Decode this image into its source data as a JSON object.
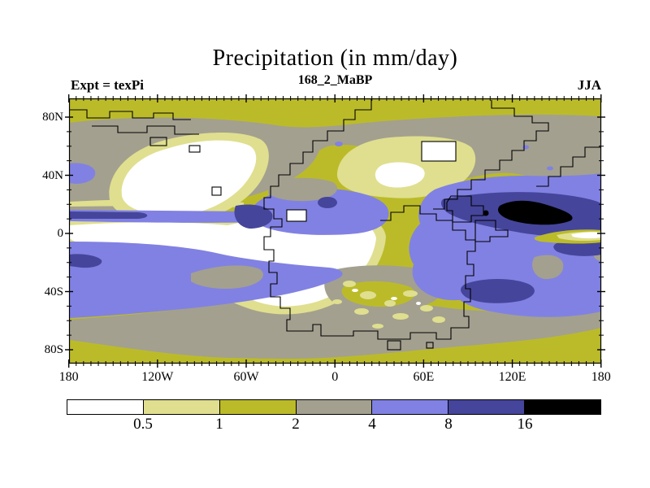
{
  "header": {
    "title": "Precipitation (in mm/day)",
    "subtitle": "168_2_MaBP",
    "experiment_label": "Expt = texPi",
    "season_label": "JJA"
  },
  "axes": {
    "lat_ticks": [
      {
        "label": "80N",
        "deg": 80
      },
      {
        "label": "40N",
        "deg": 40
      },
      {
        "label": "0",
        "deg": 0
      },
      {
        "label": "40S",
        "deg": -40
      },
      {
        "label": "80S",
        "deg": -80
      }
    ],
    "lat_minor_step_deg": 10,
    "lon_ticks": [
      {
        "label": "180",
        "deg": -180
      },
      {
        "label": "120W",
        "deg": -120
      },
      {
        "label": "60W",
        "deg": -60
      },
      {
        "label": "0",
        "deg": 0
      },
      {
        "label": "60E",
        "deg": 60
      },
      {
        "label": "120E",
        "deg": 120
      },
      {
        "label": "180",
        "deg": 180
      }
    ],
    "lon_minor_step_deg": 5
  },
  "colorbar": {
    "labels": [
      "0.5",
      "1",
      "2",
      "4",
      "8",
      "16"
    ],
    "colors": [
      "#FFFFFF",
      "#DFDF8F",
      "#BBBB2A",
      "#A3A08F",
      "#8181E3",
      "#45459B",
      "#000000"
    ]
  },
  "chart_data": {
    "type": "filled-contour-map",
    "title": "Precipitation (in mm/day)",
    "subtitle": "168_2_MaBP",
    "experiment": "Expt = texPi",
    "season": "JJA",
    "units": "mm/day",
    "projection": "equirectangular global",
    "lon_range": [
      -180,
      180
    ],
    "lat_range": [
      -90,
      90
    ],
    "contour_levels": [
      0.5,
      1,
      2,
      4,
      8,
      16
    ],
    "palette": [
      {
        "range": "< 0.5",
        "color": "#FFFFFF"
      },
      {
        "range": "0.5 - 1",
        "color": "#DFDF8F"
      },
      {
        "range": "1 - 2",
        "color": "#BBBB2A"
      },
      {
        "range": "2 - 4",
        "color": "#A3A08F"
      },
      {
        "range": "4 - 8",
        "color": "#8181E3"
      },
      {
        "range": "8 - 16",
        "color": "#45459B"
      },
      {
        "range": "> 16",
        "color": "#000000"
      }
    ],
    "features": [
      {
        "region": "high northern latitudes 70N-90N",
        "value_mm_day": "1-2 (olive) band across whole map"
      },
      {
        "region": "North Pacific 40N-70N west half",
        "value_mm_day": "2-4 (gray) large wedge"
      },
      {
        "region": "northern mid-latitudes 45N-65N east half",
        "value_mm_day": "2-4 (gray) wavy band"
      },
      {
        "region": "subtropical NE Pacific ~20N-45N, 140W-90W",
        "value_mm_day": "<0.5 (white) dry blob ringed by 0.5-1"
      },
      {
        "region": "central continent interior ~45N-55N, 30E-75E",
        "value_mm_day": "<0.5 to 1 pale/white patches"
      },
      {
        "region": "equatorial band west 180W-60W near 5N",
        "value_mm_day": "4-8 narrow band with 8-16 core at west edge"
      },
      {
        "region": "central tropical blob ~10N-25N, 35W-20E",
        "value_mm_day": "4-8 with small 8-16 spot and white inland sea"
      },
      {
        "region": "warm pool ~0N-25N, 70E-180E",
        "value_mm_day": "4-8 broad, 8-16 band, >16 (black) maximum near 10N-15N, 110E-160E"
      },
      {
        "region": "equator east edge ~0N, 155E-180E",
        "value_mm_day": "<0.5-2 bright dry streak"
      },
      {
        "region": "equatorial / southern continent ~5N-30S, 140W-10E",
        "value_mm_day": "<0.5 (white) very large dry region"
      },
      {
        "region": "southern mid-latitudes 30S-55S",
        "value_mm_day": "4-8 (periwinkle) zonal band with 8-16 patches at west edge and south Indian ocean ~35S-45S, 65E-95E"
      },
      {
        "region": "55S-70S",
        "value_mm_day": "2-4 (gray) zonal band"
      },
      {
        "region": "70S-90S",
        "value_mm_day": "1-2 (olive) band"
      }
    ],
    "coastline_style": "blocky stepped model-grid coastlines (paleogeography, 168.2 Ma BP)"
  }
}
